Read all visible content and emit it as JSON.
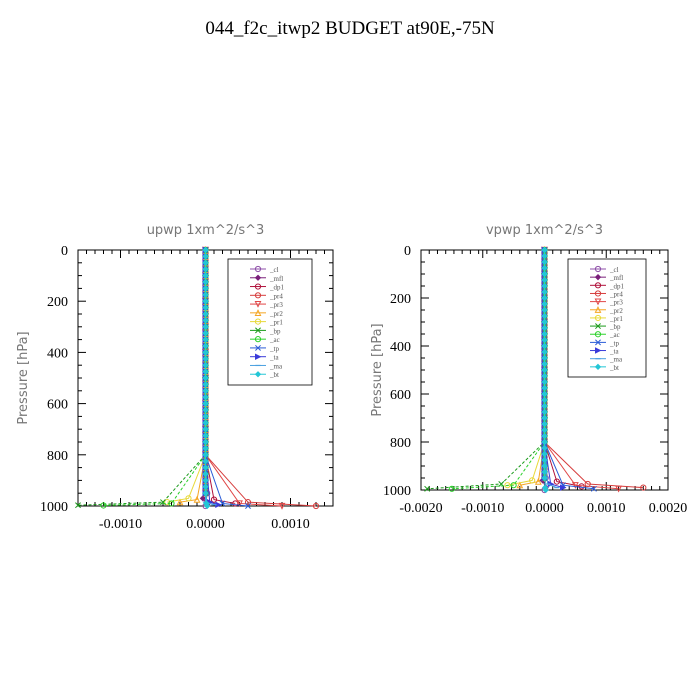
{
  "title": "044_f2c_itwp2  BUDGET at90E,-75N",
  "legend_entries": [
    {
      "label": "_cl",
      "color": "#8e4fa8",
      "marker": "o"
    },
    {
      "label": "_mfl",
      "color": "#7a1f7a",
      "marker": "diamond"
    },
    {
      "label": "_dp1",
      "color": "#b0103a",
      "marker": "o"
    },
    {
      "label": "_pr4",
      "color": "#d63c3c",
      "marker": "o"
    },
    {
      "label": "_pr3",
      "color": "#e04646",
      "marker": "tri-down"
    },
    {
      "label": "_pr2",
      "color": "#f5a623",
      "marker": "tri"
    },
    {
      "label": "_pr1",
      "color": "#e8d93a",
      "marker": "o"
    },
    {
      "label": "_bp",
      "color": "#1a9a1a",
      "marker": "x"
    },
    {
      "label": "_ac",
      "color": "#2bd12b",
      "marker": "o"
    },
    {
      "label": "_tp",
      "color": "#2a5bd7",
      "marker": "x"
    },
    {
      "label": "_ta",
      "color": "#3b3bd9",
      "marker": "tri-right"
    },
    {
      "label": "_ma",
      "color": "#4aa0e0",
      "marker": "dash"
    },
    {
      "label": "_bt",
      "color": "#22c6d6",
      "marker": "diamond"
    }
  ],
  "chart_data": [
    {
      "type": "line",
      "title": "upwp   1xm^2/s^3",
      "ylabel": "Pressure  [hPa]",
      "xlim": [
        -0.0015,
        0.0015
      ],
      "ylim": [
        1000,
        0
      ],
      "xticks": [
        -0.001,
        0.0,
        0.001
      ],
      "xtick_labels": [
        "-0.0010",
        "0.0000",
        "0.0010"
      ],
      "yticks": [
        0,
        200,
        400,
        600,
        800,
        1000
      ],
      "grid": false,
      "legend_position": "top-right",
      "series": [
        {
          "name": "_cl",
          "x": [
            0,
            0,
            0,
            0,
            0,
            0,
            0,
            0,
            0,
            2e-05,
            0
          ],
          "y": [
            0,
            100,
            200,
            300,
            400,
            500,
            600,
            700,
            800,
            950,
            1000
          ]
        },
        {
          "name": "_mfl",
          "x": [
            0,
            0,
            0,
            0,
            0,
            0,
            0,
            0,
            0,
            -3e-05,
            2e-05
          ],
          "y": [
            0,
            100,
            200,
            300,
            400,
            500,
            600,
            700,
            800,
            970,
            995
          ]
        },
        {
          "name": "_dp1",
          "x": [
            0,
            0,
            0,
            0,
            0,
            0,
            0,
            0,
            0,
            0.0001,
            0.00035
          ],
          "y": [
            0,
            100,
            200,
            300,
            400,
            500,
            600,
            700,
            800,
            975,
            990
          ]
        },
        {
          "name": "_pr4",
          "x": [
            0,
            0,
            0,
            0,
            0,
            0,
            0,
            0,
            0,
            0.0005,
            0.0013
          ],
          "y": [
            0,
            100,
            200,
            300,
            400,
            500,
            600,
            700,
            800,
            985,
            1000
          ]
        },
        {
          "name": "_pr3",
          "x": [
            0,
            0,
            0,
            0,
            0,
            0,
            0,
            0,
            0,
            0.0004,
            0.0009
          ],
          "y": [
            0,
            100,
            200,
            300,
            400,
            500,
            600,
            700,
            800,
            990,
            1000
          ]
        },
        {
          "name": "_pr2",
          "x": [
            0,
            0,
            0,
            0,
            0,
            0,
            0,
            0,
            0,
            -0.0001,
            -0.0003
          ],
          "y": [
            0,
            100,
            200,
            300,
            400,
            500,
            600,
            700,
            800,
            975,
            985
          ]
        },
        {
          "name": "_pr1",
          "x": [
            0,
            0,
            0,
            0,
            0,
            0,
            0,
            0,
            0,
            -0.0002,
            -0.00045
          ],
          "y": [
            0,
            100,
            200,
            300,
            400,
            500,
            600,
            700,
            800,
            970,
            985
          ]
        },
        {
          "name": "_bp",
          "x": [
            0,
            0,
            0,
            0,
            0,
            0,
            0,
            0,
            0,
            -0.0005,
            -0.0015
          ],
          "y": [
            0,
            100,
            200,
            300,
            400,
            500,
            600,
            700,
            800,
            985,
            997
          ]
        },
        {
          "name": "_ac",
          "x": [
            0,
            0,
            0,
            0,
            0,
            0,
            0,
            0,
            0,
            -0.0004,
            -0.0012
          ],
          "y": [
            0,
            100,
            200,
            300,
            400,
            500,
            600,
            700,
            800,
            990,
            998
          ]
        },
        {
          "name": "_tp",
          "x": [
            0,
            0,
            0,
            0,
            0,
            0,
            0,
            0,
            0,
            0.0002,
            0.0005
          ],
          "y": [
            0,
            100,
            200,
            300,
            400,
            500,
            600,
            700,
            800,
            990,
            1000
          ]
        },
        {
          "name": "_ta",
          "x": [
            0,
            0,
            0,
            0,
            0,
            0,
            0,
            0,
            0,
            5e-05,
            0.00015
          ],
          "y": [
            0,
            100,
            200,
            300,
            400,
            500,
            600,
            700,
            800,
            985,
            995
          ]
        },
        {
          "name": "_ma",
          "x": [
            0,
            0,
            0,
            0,
            0,
            0,
            0,
            0,
            0,
            0,
            0.0001
          ],
          "y": [
            0,
            100,
            200,
            300,
            400,
            500,
            600,
            700,
            800,
            985,
            995
          ]
        },
        {
          "name": "_bt",
          "x": [
            0,
            0,
            0,
            0,
            0,
            0,
            0,
            0,
            0,
            1e-05,
            2e-05
          ],
          "y": [
            0,
            100,
            200,
            300,
            400,
            500,
            600,
            700,
            800,
            990,
            1000
          ]
        }
      ]
    },
    {
      "type": "line",
      "title": "vpwp   1xm^2/s^3",
      "ylabel": "Pressure  [hPa]",
      "xlim": [
        -0.002,
        0.002
      ],
      "ylim": [
        1000,
        0
      ],
      "xticks": [
        -0.002,
        -0.001,
        0.0,
        0.001,
        0.002
      ],
      "xtick_labels": [
        "-0.0020",
        "-0.0010",
        "0.0000",
        "0.0010",
        "0.0020"
      ],
      "yticks": [
        0,
        200,
        400,
        600,
        800,
        1000
      ],
      "grid": false,
      "legend_position": "top-right",
      "series": [
        {
          "name": "_cl",
          "x": [
            0,
            0,
            0,
            0,
            0,
            0,
            0,
            0,
            0,
            2e-05,
            0
          ],
          "y": [
            0,
            100,
            200,
            300,
            400,
            500,
            600,
            700,
            800,
            950,
            1000
          ]
        },
        {
          "name": "_mfl",
          "x": [
            0,
            0,
            0,
            0,
            0,
            0,
            0,
            0,
            0,
            -3e-05,
            2e-05
          ],
          "y": [
            0,
            100,
            200,
            300,
            400,
            500,
            600,
            700,
            800,
            960,
            990
          ]
        },
        {
          "name": "_dp1",
          "x": [
            0,
            0,
            0,
            0,
            0,
            0,
            0,
            0,
            0,
            0.0002,
            0.0006
          ],
          "y": [
            0,
            100,
            200,
            300,
            400,
            500,
            600,
            700,
            800,
            965,
            985
          ]
        },
        {
          "name": "_pr4",
          "x": [
            0,
            0,
            0,
            0,
            0,
            0,
            0,
            0,
            0,
            0.0007,
            0.0016
          ],
          "y": [
            0,
            100,
            200,
            300,
            400,
            500,
            600,
            700,
            800,
            975,
            990
          ]
        },
        {
          "name": "_pr3",
          "x": [
            0,
            0,
            0,
            0,
            0,
            0,
            0,
            0,
            0,
            0.0005,
            0.0012
          ],
          "y": [
            0,
            100,
            200,
            300,
            400,
            500,
            600,
            700,
            800,
            980,
            995
          ]
        },
        {
          "name": "_pr2",
          "x": [
            0,
            0,
            0,
            0,
            0,
            0,
            0,
            0,
            0,
            -0.0001,
            -0.0004
          ],
          "y": [
            0,
            100,
            200,
            300,
            400,
            500,
            600,
            700,
            800,
            965,
            980
          ]
        },
        {
          "name": "_pr1",
          "x": [
            0,
            0,
            0,
            0,
            0,
            0,
            0,
            0,
            0,
            -0.0002,
            -0.0006
          ],
          "y": [
            0,
            100,
            200,
            300,
            400,
            500,
            600,
            700,
            800,
            960,
            980
          ]
        },
        {
          "name": "_bp",
          "x": [
            0,
            0,
            0,
            0,
            0,
            0,
            0,
            0,
            0,
            -0.0007,
            -0.0019
          ],
          "y": [
            0,
            100,
            200,
            300,
            400,
            500,
            600,
            700,
            800,
            975,
            995
          ]
        },
        {
          "name": "_ac",
          "x": [
            0,
            0,
            0,
            0,
            0,
            0,
            0,
            0,
            0,
            -0.0005,
            -0.0015
          ],
          "y": [
            0,
            100,
            200,
            300,
            400,
            500,
            600,
            700,
            800,
            980,
            995
          ]
        },
        {
          "name": "_tp",
          "x": [
            0,
            0,
            0,
            0,
            0,
            0,
            0,
            0,
            0,
            0.0003,
            0.0008
          ],
          "y": [
            0,
            100,
            200,
            300,
            400,
            500,
            600,
            700,
            800,
            980,
            995
          ]
        },
        {
          "name": "_ta",
          "x": [
            0,
            0,
            0,
            0,
            0,
            0,
            0,
            0,
            0,
            0.0001,
            0.0003
          ],
          "y": [
            0,
            100,
            200,
            300,
            400,
            500,
            600,
            700,
            800,
            975,
            990
          ]
        },
        {
          "name": "_ma",
          "x": [
            0,
            0,
            0,
            0,
            0,
            0,
            0,
            0,
            0,
            5e-05,
            0.0002
          ],
          "y": [
            0,
            100,
            200,
            300,
            400,
            500,
            600,
            700,
            800,
            975,
            990
          ]
        },
        {
          "name": "_bt",
          "x": [
            0,
            0,
            0,
            0,
            0,
            0,
            0,
            0,
            0,
            1e-05,
            2e-05
          ],
          "y": [
            0,
            100,
            200,
            300,
            400,
            500,
            600,
            700,
            800,
            990,
            1000
          ]
        }
      ]
    }
  ]
}
